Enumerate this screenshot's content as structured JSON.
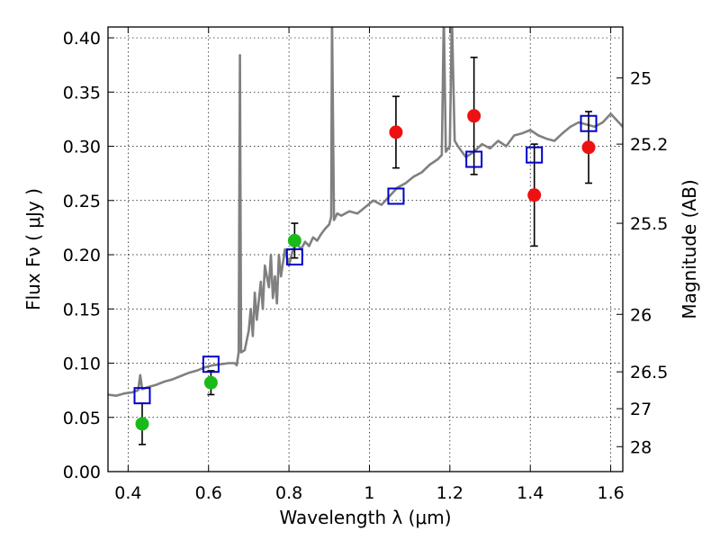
{
  "chart_data": {
    "type": "scatter",
    "title": "",
    "xlabel": "Wavelength  λ (μm)",
    "ylabel": "Flux  Fν  ( μJy )",
    "ylabel_right": "Magnitude (AB)",
    "xlim": [
      0.35,
      1.63
    ],
    "ylim": [
      0.0,
      0.41
    ],
    "grid": true,
    "x_ticks": [
      0.4,
      0.6,
      0.8,
      1.0,
      1.2,
      1.4,
      1.6
    ],
    "x_tick_labels": [
      "0.4",
      "0.6",
      "0.8",
      "1",
      "1.2",
      "1.4",
      "1.6"
    ],
    "y_ticks": [
      0.0,
      0.05,
      0.1,
      0.15,
      0.2,
      0.25,
      0.3,
      0.35,
      0.4
    ],
    "y_tick_labels": [
      "0.00",
      "0.05",
      "0.10",
      "0.15",
      "0.20",
      "0.25",
      "0.30",
      "0.35",
      "0.40"
    ],
    "right_ticks": [
      {
        "label": "25",
        "flux": 0.363
      },
      {
        "label": "25.2",
        "flux": 0.302
      },
      {
        "label": "25.5",
        "flux": 0.229
      },
      {
        "label": "26",
        "flux": 0.145
      },
      {
        "label": "26.5",
        "flux": 0.092
      },
      {
        "label": "27",
        "flux": 0.058
      },
      {
        "label": "28",
        "flux": 0.023
      }
    ],
    "series": [
      {
        "kind": "line",
        "color": "#808080",
        "points": [
          [
            0.35,
            0.071
          ],
          [
            0.37,
            0.07
          ],
          [
            0.39,
            0.072
          ],
          [
            0.41,
            0.073
          ],
          [
            0.425,
            0.075
          ],
          [
            0.43,
            0.089
          ],
          [
            0.435,
            0.076
          ],
          [
            0.45,
            0.078
          ],
          [
            0.47,
            0.08
          ],
          [
            0.49,
            0.083
          ],
          [
            0.51,
            0.085
          ],
          [
            0.53,
            0.088
          ],
          [
            0.55,
            0.091
          ],
          [
            0.57,
            0.093
          ],
          [
            0.59,
            0.096
          ],
          [
            0.61,
            0.098
          ],
          [
            0.63,
            0.099
          ],
          [
            0.65,
            0.1
          ],
          [
            0.665,
            0.1
          ],
          [
            0.67,
            0.098
          ],
          [
            0.675,
            0.11
          ],
          [
            0.678,
            0.384
          ],
          [
            0.681,
            0.11
          ],
          [
            0.69,
            0.112
          ],
          [
            0.7,
            0.13
          ],
          [
            0.705,
            0.15
          ],
          [
            0.71,
            0.125
          ],
          [
            0.715,
            0.165
          ],
          [
            0.72,
            0.14
          ],
          [
            0.73,
            0.175
          ],
          [
            0.735,
            0.15
          ],
          [
            0.74,
            0.19
          ],
          [
            0.75,
            0.17
          ],
          [
            0.755,
            0.2
          ],
          [
            0.76,
            0.16
          ],
          [
            0.765,
            0.18
          ],
          [
            0.77,
            0.155
          ],
          [
            0.775,
            0.2
          ],
          [
            0.78,
            0.18
          ],
          [
            0.79,
            0.205
          ],
          [
            0.8,
            0.19
          ],
          [
            0.81,
            0.205
          ],
          [
            0.82,
            0.21
          ],
          [
            0.83,
            0.205
          ],
          [
            0.84,
            0.212
          ],
          [
            0.85,
            0.208
          ],
          [
            0.86,
            0.216
          ],
          [
            0.87,
            0.213
          ],
          [
            0.88,
            0.219
          ],
          [
            0.89,
            0.224
          ],
          [
            0.9,
            0.228
          ],
          [
            0.905,
            0.235
          ],
          [
            0.907,
            0.42
          ],
          [
            0.912,
            0.232
          ],
          [
            0.92,
            0.238
          ],
          [
            0.93,
            0.236
          ],
          [
            0.95,
            0.24
          ],
          [
            0.97,
            0.238
          ],
          [
            0.99,
            0.244
          ],
          [
            1.01,
            0.25
          ],
          [
            1.03,
            0.246
          ],
          [
            1.05,
            0.254
          ],
          [
            1.07,
            0.262
          ],
          [
            1.09,
            0.266
          ],
          [
            1.11,
            0.272
          ],
          [
            1.13,
            0.276
          ],
          [
            1.15,
            0.283
          ],
          [
            1.17,
            0.288
          ],
          [
            1.18,
            0.292
          ],
          [
            1.185,
            0.42
          ],
          [
            1.19,
            0.295
          ],
          [
            1.2,
            0.3
          ],
          [
            1.205,
            0.42
          ],
          [
            1.212,
            0.305
          ],
          [
            1.22,
            0.3
          ],
          [
            1.24,
            0.29
          ],
          [
            1.26,
            0.295
          ],
          [
            1.28,
            0.302
          ],
          [
            1.3,
            0.298
          ],
          [
            1.32,
            0.305
          ],
          [
            1.34,
            0.3
          ],
          [
            1.36,
            0.31
          ],
          [
            1.38,
            0.312
          ],
          [
            1.4,
            0.315
          ],
          [
            1.42,
            0.31
          ],
          [
            1.44,
            0.307
          ],
          [
            1.46,
            0.305
          ],
          [
            1.48,
            0.312
          ],
          [
            1.5,
            0.318
          ],
          [
            1.52,
            0.322
          ],
          [
            1.54,
            0.32
          ],
          [
            1.56,
            0.318
          ],
          [
            1.58,
            0.322
          ],
          [
            1.6,
            0.33
          ],
          [
            1.62,
            0.322
          ],
          [
            1.63,
            0.318
          ]
        ]
      },
      {
        "kind": "points",
        "color": "#1aba1a",
        "marker": "circle",
        "points": [
          {
            "x": 0.435,
            "y": 0.044,
            "err": 0.019
          },
          {
            "x": 0.606,
            "y": 0.082,
            "err": 0.011
          },
          {
            "x": 0.814,
            "y": 0.213,
            "err": 0.016
          }
        ]
      },
      {
        "kind": "points",
        "color": "#ee1111",
        "marker": "circle",
        "points": [
          {
            "x": 1.066,
            "y": 0.313,
            "err": 0.033
          },
          {
            "x": 1.26,
            "y": 0.328,
            "err": 0.054
          },
          {
            "x": 1.41,
            "y": 0.255,
            "err": 0.047
          },
          {
            "x": 1.545,
            "y": 0.299,
            "err": 0.033
          }
        ]
      },
      {
        "kind": "points",
        "color": "#0000cc",
        "marker": "open-square",
        "points": [
          {
            "x": 0.435,
            "y": 0.07
          },
          {
            "x": 0.606,
            "y": 0.099
          },
          {
            "x": 0.814,
            "y": 0.198
          },
          {
            "x": 1.066,
            "y": 0.254
          },
          {
            "x": 1.26,
            "y": 0.288
          },
          {
            "x": 1.41,
            "y": 0.292
          },
          {
            "x": 1.545,
            "y": 0.321
          }
        ]
      }
    ]
  }
}
